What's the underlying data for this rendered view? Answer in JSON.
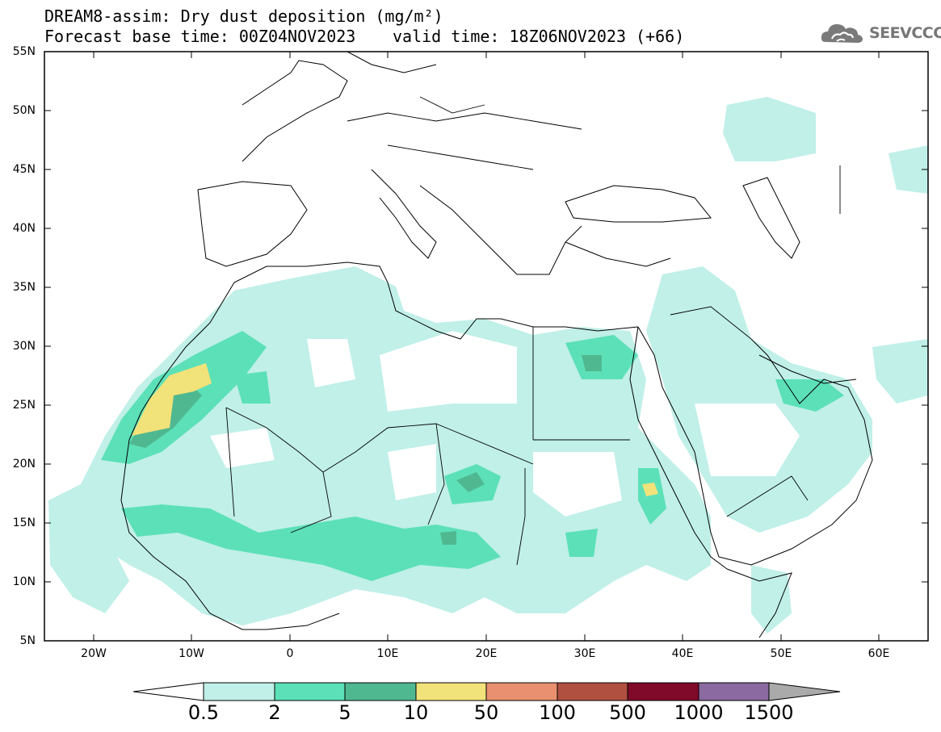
{
  "header": {
    "title_line1": "DREAM8-assim: Dry dust deposition (mg/m²)",
    "title_line2": "Forecast base time: 00Z04NOV2023",
    "valid_time": "valid time: 18Z06NOV2023 (+66)"
  },
  "logo": {
    "text": "SEEVCCC",
    "icon": "cloud-icon",
    "color": "#7a7a7a"
  },
  "map": {
    "lat_range": [
      5,
      55
    ],
    "lon_range": [
      -25,
      65
    ],
    "lat_ticks": [
      "55N",
      "50N",
      "45N",
      "40N",
      "35N",
      "30N",
      "25N",
      "20N",
      "15N",
      "10N",
      "5N"
    ],
    "lon_ticks": [
      "20W",
      "10W",
      "0",
      "10E",
      "20E",
      "30E",
      "40E",
      "50E",
      "60E"
    ]
  },
  "colorbar": {
    "labels": [
      "0.5",
      "2",
      "5",
      "10",
      "50",
      "100",
      "500",
      "1000",
      "1500"
    ],
    "colors": [
      "#c0f0e8",
      "#5ce0b8",
      "#50b890",
      "#f2e27a",
      "#e89070",
      "#b05040",
      "#800a2a",
      "#8a6aa0",
      "#aaaaaa"
    ]
  }
}
